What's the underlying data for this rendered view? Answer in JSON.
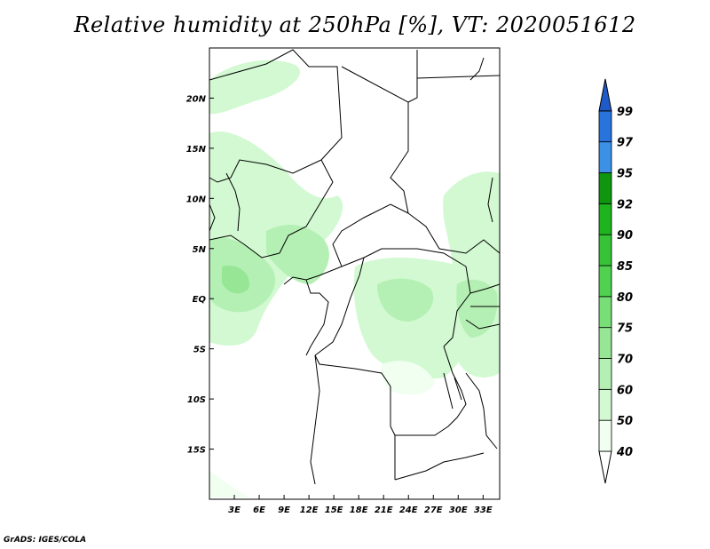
{
  "title": "Relative humidity at 250hPa [%], VT: 2020051612",
  "footer": "GrADS: IGES/COLA",
  "map": {
    "lon_labels": [
      "3E",
      "6E",
      "9E",
      "12E",
      "15E",
      "18E",
      "21E",
      "24E",
      "27E",
      "30E",
      "33E"
    ],
    "lat_labels": [
      "20N",
      "15N",
      "10N",
      "5N",
      "EQ",
      "5S",
      "10S",
      "15S"
    ],
    "lon_values": [
      3,
      6,
      9,
      12,
      15,
      18,
      21,
      24,
      27,
      30,
      33
    ],
    "lat_values": [
      20,
      15,
      10,
      5,
      0,
      -5,
      -10,
      -15
    ],
    "lon_range": [
      0,
      35
    ],
    "lat_range": [
      -20,
      25
    ]
  },
  "colorbar": {
    "labels": [
      "40",
      "50",
      "60",
      "70",
      "75",
      "80",
      "85",
      "90",
      "92",
      "95",
      "97",
      "99"
    ],
    "colors": [
      "#f0fff0",
      "#d2f9d2",
      "#b4f0b4",
      "#96e696",
      "#78de78",
      "#50d250",
      "#37c337",
      "#1eb41e",
      "#0f960f",
      "#3c91e6",
      "#2873dc",
      "#1e5ac8"
    ]
  }
}
